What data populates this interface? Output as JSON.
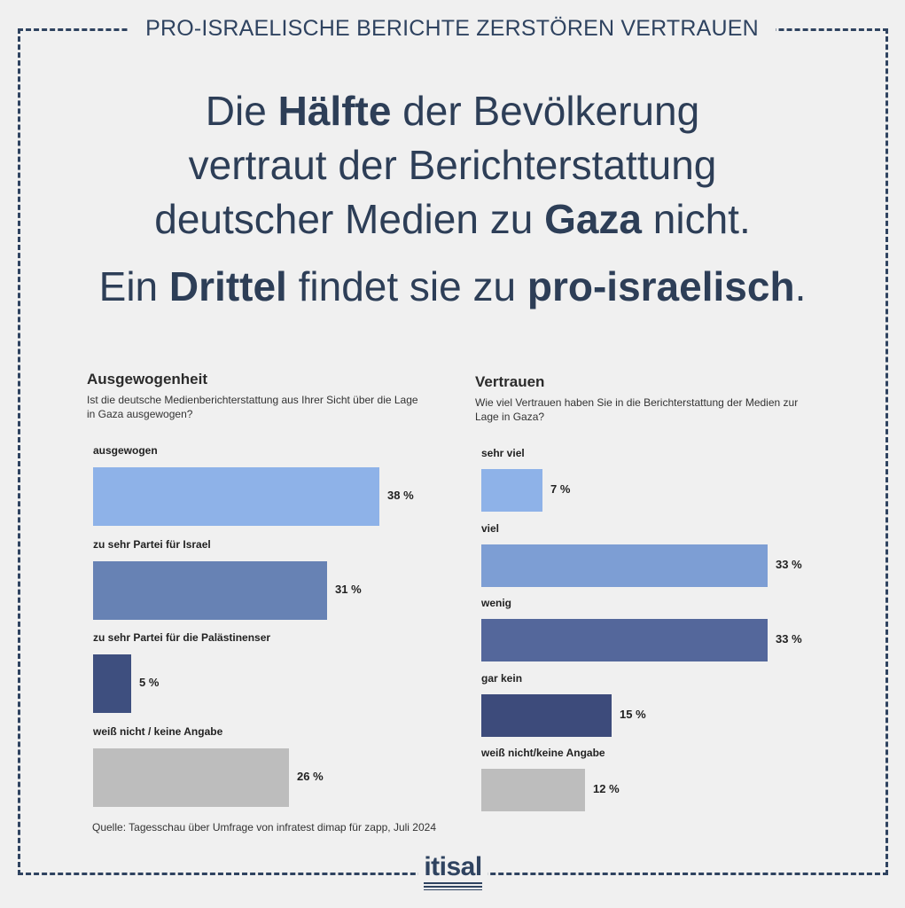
{
  "header": {
    "top_title": "PRO-ISRAELISCHE BERICHTE ZERSTÖREN VERTRAUEN",
    "headline_parts": [
      {
        "text": "Die ",
        "bold": false
      },
      {
        "text": "Hälfte",
        "bold": true
      },
      {
        "text": " der Bevölkerung",
        "bold": false
      },
      {
        "text": "\n",
        "bold": false
      },
      {
        "text": "vertraut der Berichterstattung",
        "bold": false
      },
      {
        "text": "\n",
        "bold": false
      },
      {
        "text": "deutscher Medien zu ",
        "bold": false
      },
      {
        "text": "Gaza",
        "bold": true
      },
      {
        "text": " nicht.",
        "bold": false
      }
    ],
    "subline_parts": [
      {
        "text": "Ein ",
        "bold": false
      },
      {
        "text": "Drittel",
        "bold": true
      },
      {
        "text": " findet sie zu ",
        "bold": false
      },
      {
        "text": "pro-israelisch",
        "bold": true
      },
      {
        "text": ".",
        "bold": false
      }
    ]
  },
  "chart_data": [
    {
      "type": "bar",
      "orientation": "horizontal",
      "title": "Ausgewogenheit",
      "question": "Ist die deutsche Medienberichterstattung aus Ihrer Sicht über die Lage in Gaza ausgewogen?",
      "categories": [
        "ausgewogen",
        "zu sehr Partei für Israel",
        "zu sehr Partei für die Palästinenser",
        "weiß nicht / keine Angabe"
      ],
      "values": [
        38,
        31,
        5,
        26
      ],
      "value_labels": [
        "38 %",
        "31 %",
        "5 %",
        "26 %"
      ],
      "colors": [
        "#8eb2e8",
        "#6782b4",
        "#3e4f7f",
        "#bdbdbd"
      ],
      "xlim": [
        0,
        38
      ]
    },
    {
      "type": "bar",
      "orientation": "horizontal",
      "title": "Vertrauen",
      "question": "Wie viel Vertrauen haben Sie in die Berichterstattung der Medien zur Lage in Gaza?",
      "categories": [
        "sehr viel",
        "viel",
        "wenig",
        "gar kein",
        "weiß nicht/keine Angabe"
      ],
      "values": [
        7,
        33,
        33,
        15,
        12
      ],
      "value_labels": [
        "7 %",
        "33 %",
        "33 %",
        "15 %",
        "12 %"
      ],
      "colors": [
        "#8eb2e8",
        "#7d9ed4",
        "#54679b",
        "#3d4b7b",
        "#bdbdbd"
      ],
      "xlim": [
        0,
        33
      ]
    }
  ],
  "footer": {
    "source": "Quelle: Tagesschau über Umfrage von infratest dimap für zapp, Juli 2024",
    "logo_text": "itisal"
  }
}
